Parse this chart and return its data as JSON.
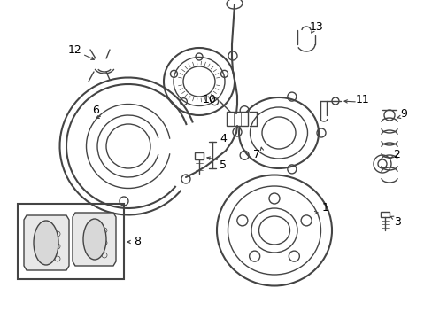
{
  "bg_color": "#ffffff",
  "line_color": "#444444",
  "fig_width": 4.89,
  "fig_height": 3.6,
  "dpi": 100
}
